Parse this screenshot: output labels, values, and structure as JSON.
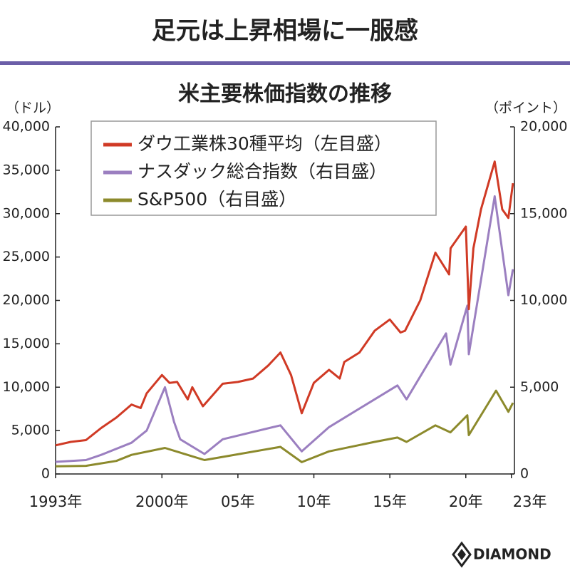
{
  "title": "足元は上昇相場に一服感",
  "chart_data": {
    "type": "line",
    "title": "米主要株価指数の推移",
    "y_label": "（ドル）",
    "y2_label": "（ポイント）",
    "xlim": [
      1993,
      2023.2
    ],
    "xticks": [
      {
        "value": 1993,
        "label": "1993年"
      },
      {
        "value": 2000,
        "label": "2000年"
      },
      {
        "value": 2005,
        "label": "05年"
      },
      {
        "value": 2010,
        "label": "10年"
      },
      {
        "value": 2015,
        "label": "15年"
      },
      {
        "value": 2020,
        "label": "20年"
      },
      {
        "value": 2023,
        "label": "23年"
      }
    ],
    "ylim": [
      0,
      40000
    ],
    "yticks": [
      0,
      {
        "value": 5000,
        "label": "5,000"
      },
      {
        "value": 10000,
        "label": "10,000"
      },
      {
        "value": 15000,
        "label": "15,000"
      },
      {
        "value": 20000,
        "label": "20,000"
      },
      {
        "value": 25000,
        "label": "25,000"
      },
      {
        "value": 30000,
        "label": "30,000"
      },
      {
        "value": 35000,
        "label": "35,000"
      },
      {
        "value": 40000,
        "label": "40,000"
      }
    ],
    "y2lim": [
      0,
      20000
    ],
    "y2ticks": [
      0,
      {
        "value": 5000,
        "label": "5,000"
      },
      {
        "value": 10000,
        "label": "10,000"
      },
      {
        "value": 15000,
        "label": "15,000"
      },
      {
        "value": 20000,
        "label": "20,000"
      }
    ],
    "legend": "top-left",
    "series": [
      {
        "name": "ダウ工業株30種平均（左目盛）",
        "color": "#d03a25",
        "x": [
          1993,
          1994,
          1995,
          1996,
          1997,
          1998,
          1998.6,
          1999,
          2000,
          2000.5,
          2001,
          2001.7,
          2002,
          2002.7,
          2003,
          2004,
          2005,
          2006,
          2007,
          2007.8,
          2008.5,
          2009.2,
          2010,
          2011,
          2011.7,
          2012,
          2013,
          2014,
          2015,
          2015.7,
          2016,
          2017,
          2018,
          2018.9,
          2019,
          2020,
          2020.2,
          2020.5,
          2021,
          2021.9,
          2022.4,
          2022.8,
          2023.1
        ],
        "values": [
          3300,
          3700,
          3900,
          5300,
          6500,
          8000,
          7600,
          9300,
          11400,
          10500,
          10600,
          8600,
          10000,
          7800,
          8400,
          10400,
          10600,
          11000,
          12500,
          14000,
          11400,
          7000,
          10500,
          12000,
          11000,
          12900,
          14000,
          16500,
          17800,
          16300,
          16500,
          20000,
          25500,
          23000,
          26000,
          28500,
          19000,
          26000,
          30500,
          36000,
          30500,
          29500,
          33500
        ]
      },
      {
        "name": "ナスダック総合指数（右目盛）",
        "color": "#9b7fc0",
        "x": [
          1993,
          1995,
          1996,
          1998,
          1999,
          2000.2,
          2000.8,
          2001.2,
          2002.8,
          2004,
          2007.8,
          2009.2,
          2011,
          2014,
          2015.5,
          2016.1,
          2018.7,
          2018.99,
          2020.1,
          2020.2,
          2021.9,
          2022.8,
          2023.1
        ],
        "values": [
          700,
          800,
          1100,
          1800,
          2500,
          5000,
          3000,
          2000,
          1150,
          2000,
          2800,
          1300,
          2700,
          4300,
          5100,
          4300,
          8100,
          6300,
          9700,
          6900,
          16000,
          10300,
          11800
        ],
        "axis": "y2"
      },
      {
        "name": "S&P500（右目盛）",
        "color": "#8c8a2c",
        "x": [
          1993,
          1995,
          1997,
          1998,
          2000.2,
          2002.8,
          2007.8,
          2009.2,
          2011,
          2014,
          2015.5,
          2016.1,
          2018,
          2018.99,
          2020.1,
          2020.2,
          2021.99,
          2022.8,
          2023.1
        ],
        "values": [
          440,
          470,
          750,
          1100,
          1500,
          800,
          1560,
          680,
          1300,
          1850,
          2100,
          1850,
          2800,
          2400,
          3380,
          2240,
          4800,
          3580,
          4100
        ],
        "axis": "y2"
      }
    ]
  },
  "footer": {
    "logo": "DIAMOND"
  }
}
